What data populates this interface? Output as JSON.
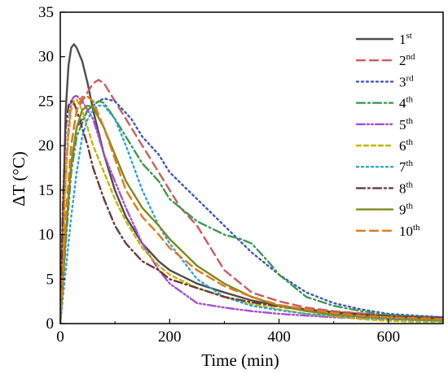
{
  "chart_data": {
    "type": "line",
    "xlabel": "Time (min)",
    "ylabel": "ΔT (°C)",
    "xlim": [
      0,
      700
    ],
    "ylim": [
      0,
      35
    ],
    "xticks": [
      0,
      200,
      400,
      600
    ],
    "yticks": [
      0,
      5,
      10,
      15,
      20,
      25,
      30,
      35
    ],
    "legend_position": "top-right",
    "grid": false,
    "series": [
      {
        "name": "1",
        "name_sup": "st",
        "color": "#4d4d4d",
        "dash": "solid",
        "x": [
          0,
          5,
          10,
          15,
          20,
          25,
          30,
          40,
          50,
          60,
          80,
          100,
          120,
          150,
          180,
          200,
          250,
          300,
          350,
          400,
          450,
          500,
          550,
          600,
          650,
          700
        ],
        "y": [
          0,
          12,
          24,
          29,
          31,
          31.4,
          31,
          29.5,
          27,
          24,
          19,
          15,
          12,
          9,
          7,
          6,
          4.5,
          3.5,
          2.6,
          2,
          1.6,
          1.3,
          1.1,
          0.9,
          0.8,
          0.7
        ]
      },
      {
        "name": "2",
        "name_sup": "nd",
        "color": "#cd5c5c",
        "dash": "dashed",
        "x": [
          0,
          10,
          20,
          30,
          40,
          60,
          70,
          80,
          100,
          120,
          150,
          180,
          200,
          220,
          250,
          280,
          300,
          350,
          400,
          450,
          500,
          600,
          700
        ],
        "y": [
          0,
          10,
          20,
          24,
          25,
          27,
          27.4,
          27,
          25,
          23,
          20,
          17,
          15,
          13,
          11,
          8,
          6,
          3.5,
          2.5,
          1.8,
          1.4,
          0.9,
          0.6
        ]
      },
      {
        "name": "3",
        "name_sup": "rd",
        "color": "#3a55c9",
        "dash": "dotted",
        "x": [
          0,
          10,
          20,
          30,
          50,
          70,
          80,
          100,
          130,
          150,
          180,
          200,
          250,
          300,
          350,
          400,
          450,
          500,
          550,
          600,
          700
        ],
        "y": [
          0,
          10,
          18,
          22,
          24,
          25,
          25.3,
          25,
          23,
          21,
          19,
          17,
          14,
          11,
          8,
          5.5,
          3.5,
          2.3,
          1.6,
          1.1,
          0.7
        ]
      },
      {
        "name": "4",
        "name_sup": "th",
        "color": "#3a9a50",
        "dash": "dashdot",
        "x": [
          0,
          10,
          20,
          30,
          50,
          70,
          80,
          100,
          130,
          150,
          180,
          200,
          250,
          300,
          330,
          350,
          380,
          400,
          450,
          500,
          550,
          600,
          700
        ],
        "y": [
          0,
          9,
          17,
          21,
          24,
          25,
          24.8,
          23,
          20,
          18,
          16,
          14,
          11.5,
          10,
          9.5,
          9,
          7,
          5.5,
          3,
          2,
          1.4,
          1,
          0.6
        ]
      },
      {
        "name": "5",
        "name_sup": "th",
        "color": "#a64dd9",
        "dash": "dashdotdot",
        "x": [
          0,
          8,
          15,
          20,
          25,
          30,
          35,
          40,
          50,
          60,
          80,
          100,
          120,
          150,
          180,
          200,
          250,
          300,
          350,
          400,
          450,
          500,
          550,
          600,
          650,
          700
        ],
        "y": [
          0,
          14,
          22,
          25,
          25.5,
          25.6,
          25.3,
          25,
          24,
          23,
          19,
          16,
          13,
          9,
          6,
          4.5,
          2.3,
          1.8,
          1.4,
          1.1,
          0.9,
          0.7,
          0.6,
          0.5,
          0.4,
          0.3
        ]
      },
      {
        "name": "6",
        "name_sup": "th",
        "color": "#c8b400",
        "dash": "shortdash",
        "x": [
          0,
          8,
          15,
          20,
          25,
          30,
          40,
          50,
          60,
          80,
          100,
          120,
          150,
          180,
          200,
          250,
          300,
          350,
          400,
          450,
          500,
          550,
          600,
          650,
          700
        ],
        "y": [
          0,
          14,
          21,
          24,
          25,
          25.2,
          24,
          22,
          20,
          17,
          14,
          11.5,
          8.5,
          6.5,
          5.5,
          4,
          3,
          2.2,
          1.6,
          1.1,
          0.8,
          0.5,
          0.3,
          0.2,
          0.2
        ]
      },
      {
        "name": "7",
        "name_sup": "th",
        "color": "#2aa5d6",
        "dash": "dotted",
        "x": [
          0,
          10,
          20,
          30,
          40,
          50,
          60,
          70,
          80,
          100,
          120,
          150,
          180,
          200,
          250,
          300,
          350,
          400,
          450,
          500,
          550,
          600,
          650,
          700
        ],
        "y": [
          0,
          6,
          12,
          17,
          21,
          23,
          24,
          24.5,
          24.5,
          23,
          20,
          15,
          11,
          9,
          5,
          3,
          2,
          1.5,
          1.1,
          0.9,
          0.7,
          0.5,
          0.4,
          0.3
        ]
      },
      {
        "name": "8",
        "name_sup": "th",
        "color": "#6b3a3a",
        "dash": "dashdot",
        "x": [
          0,
          5,
          10,
          15,
          20,
          25,
          30,
          40,
          50,
          60,
          80,
          100,
          120,
          150,
          180,
          200,
          250,
          300,
          350,
          400,
          450,
          500,
          550,
          600,
          650,
          700
        ],
        "y": [
          0,
          14,
          22,
          24.5,
          25,
          24.8,
          24,
          22,
          20,
          17.5,
          14,
          11,
          9,
          7,
          6,
          5,
          4,
          3,
          2.4,
          1.9,
          1.5,
          1.2,
          1,
          0.8,
          0.7,
          0.6
        ]
      },
      {
        "name": "9",
        "name_sup": "th",
        "color": "#808a1a",
        "dash": "solid",
        "x": [
          0,
          10,
          20,
          30,
          40,
          50,
          60,
          80,
          100,
          120,
          150,
          180,
          200,
          250,
          300,
          350,
          400,
          450,
          500,
          550,
          600,
          650,
          700
        ],
        "y": [
          0,
          10,
          18,
          22,
          24,
          24.5,
          24.3,
          22,
          19,
          16,
          13,
          11,
          9.5,
          6.5,
          4.5,
          3,
          2,
          1.4,
          1,
          0.8,
          0.6,
          0.5,
          0.4
        ]
      },
      {
        "name": "10",
        "name_sup": "th",
        "color": "#e07a1a",
        "dash": "dashed",
        "x": [
          0,
          10,
          20,
          30,
          40,
          50,
          60,
          80,
          100,
          120,
          150,
          180,
          200,
          250,
          300,
          350,
          400,
          450,
          500,
          550,
          600,
          650,
          700
        ],
        "y": [
          0,
          12,
          20,
          24,
          25.5,
          25.5,
          25,
          22,
          18.5,
          15,
          12,
          10,
          8.5,
          6,
          4.2,
          3,
          2.1,
          1.6,
          1.2,
          0.9,
          0.7,
          0.6,
          0.5
        ]
      }
    ]
  }
}
